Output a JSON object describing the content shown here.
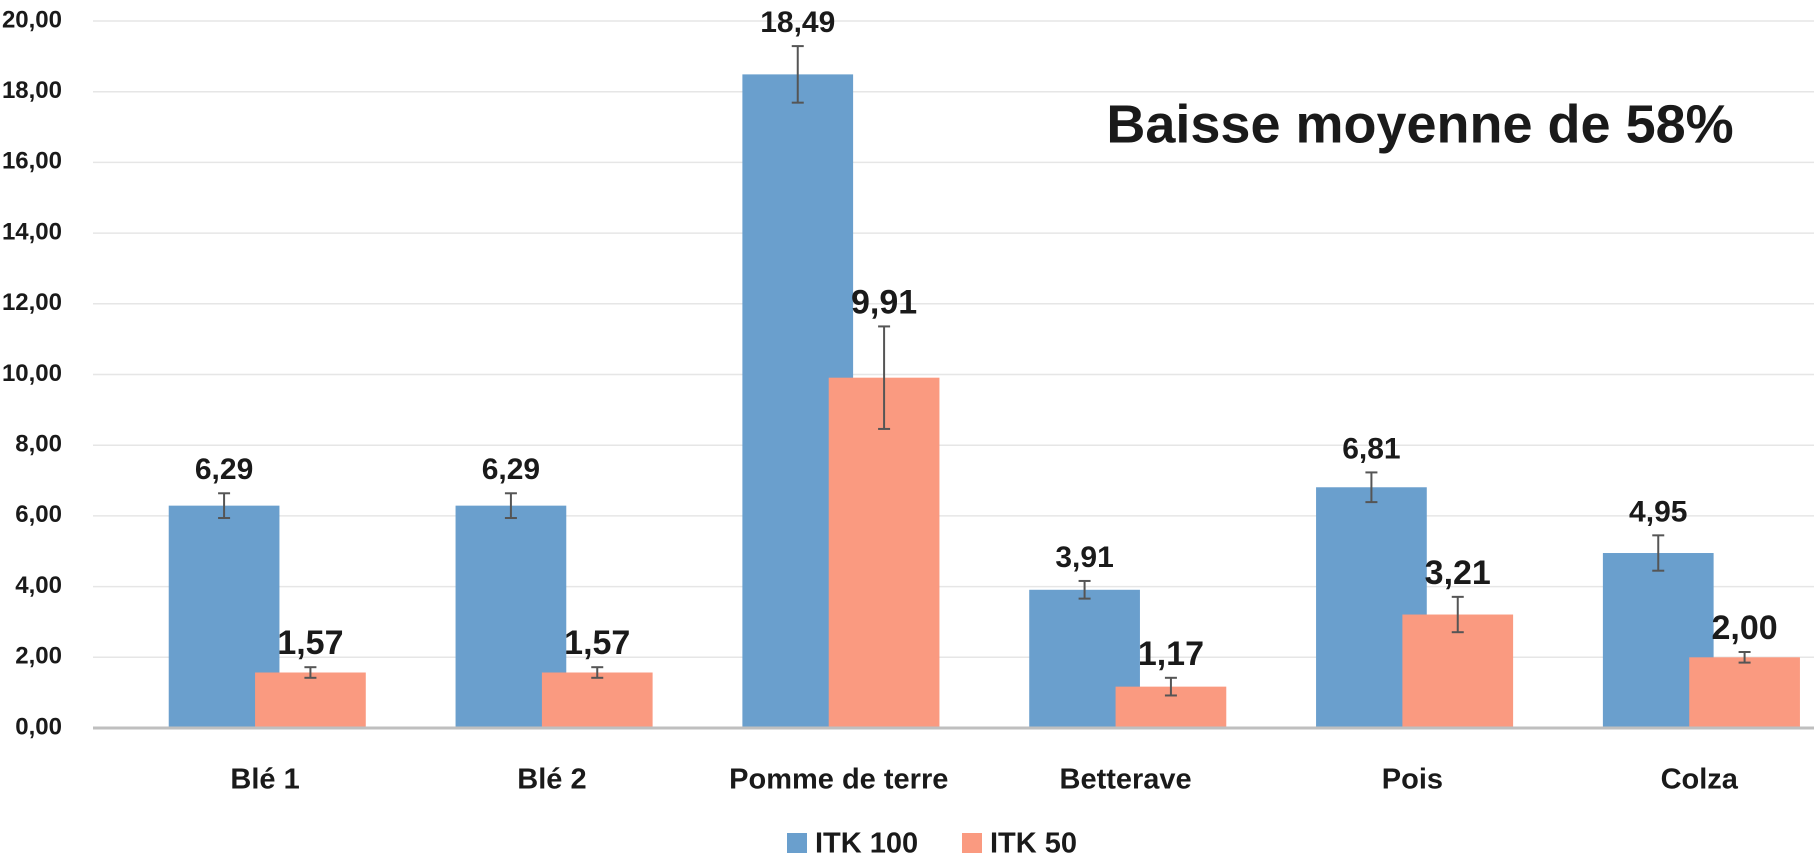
{
  "chart_data": {
    "type": "bar",
    "annotation": "Baisse moyenne de 58%",
    "categories": [
      "Blé 1",
      "Blé 2",
      "Pomme de terre",
      "Betterave",
      "Pois",
      "Colza"
    ],
    "series": [
      {
        "name": "ITK 100",
        "color": "#6a9fcd",
        "values": [
          6.29,
          6.29,
          18.49,
          3.91,
          6.81,
          4.95
        ],
        "value_labels": [
          "6,29",
          "6,29",
          "18,49",
          "3,91",
          "6,81",
          "4,95"
        ],
        "errors": [
          0.35,
          0.35,
          0.8,
          0.25,
          0.42,
          0.5
        ]
      },
      {
        "name": "ITK 50",
        "color": "#fa9a80",
        "values": [
          1.57,
          1.57,
          9.91,
          1.17,
          3.21,
          2.0
        ],
        "value_labels": [
          "1,57",
          "1,57",
          "9,91",
          "1,17",
          "3,21",
          "2,00"
        ],
        "errors": [
          0.15,
          0.15,
          1.45,
          0.25,
          0.5,
          0.15
        ]
      }
    ],
    "ylim": [
      0,
      20
    ],
    "yticks": [
      {
        "value": 0,
        "label": "0,00"
      },
      {
        "value": 2,
        "label": "2,00"
      },
      {
        "value": 4,
        "label": "4,00"
      },
      {
        "value": 6,
        "label": "6,00"
      },
      {
        "value": 8,
        "label": "8,00"
      },
      {
        "value": 10,
        "label": "10,00"
      },
      {
        "value": 12,
        "label": "12,00"
      },
      {
        "value": 14,
        "label": "14,00"
      },
      {
        "value": 16,
        "label": "16,00"
      },
      {
        "value": 18,
        "label": "18,00"
      },
      {
        "value": 20,
        "label": "20,00"
      }
    ],
    "grid": true,
    "legend": "bottom"
  }
}
